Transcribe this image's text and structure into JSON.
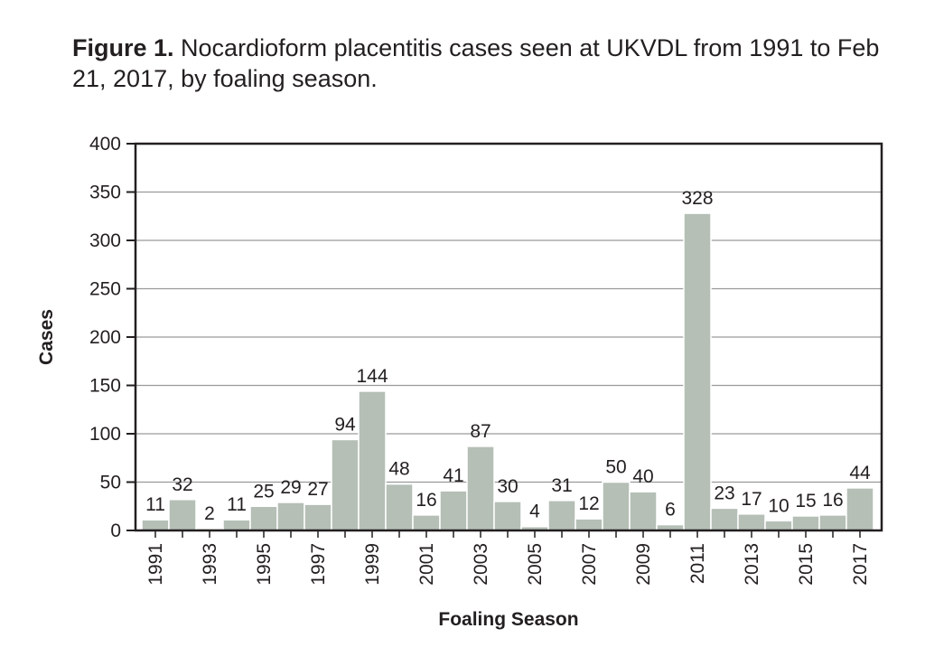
{
  "caption": {
    "label": "Figure 1.",
    "text": " Nocardioform placentitis cases seen at UKVDL from 1991 to Feb 21, 2017, by foaling season."
  },
  "chart_data": {
    "type": "bar",
    "categories": [
      "1991",
      "1992",
      "1993",
      "1994",
      "1995",
      "1996",
      "1997",
      "1998",
      "1999",
      "2000",
      "2001",
      "2002",
      "2003",
      "2004",
      "2005",
      "2006",
      "2007",
      "2008",
      "2009",
      "2010",
      "2011",
      "2012",
      "2013",
      "2014",
      "2015",
      "2016",
      "2017"
    ],
    "x_tick_labels": [
      "1991",
      "",
      "1993",
      "",
      "1995",
      "",
      "1997",
      "",
      "1999",
      "",
      "2001",
      "",
      "2003",
      "",
      "2005",
      "",
      "2007",
      "",
      "2009",
      "",
      "2011",
      "",
      "2013",
      "",
      "2015",
      "",
      "2017"
    ],
    "values": [
      11,
      32,
      2,
      11,
      25,
      29,
      27,
      94,
      144,
      48,
      16,
      41,
      87,
      30,
      4,
      31,
      12,
      50,
      40,
      6,
      328,
      23,
      17,
      10,
      15,
      16,
      44
    ],
    "xlabel": "Foaling Season",
    "ylabel": "Cases",
    "ylim": [
      0,
      400
    ],
    "yticks": [
      0,
      50,
      100,
      150,
      200,
      250,
      300,
      350,
      400
    ],
    "grid": true,
    "colors": {
      "bar": "#b5bfb6",
      "bar_edge": "#ffffff",
      "grid": "#9a9a9a",
      "axis": "#231f20"
    }
  }
}
